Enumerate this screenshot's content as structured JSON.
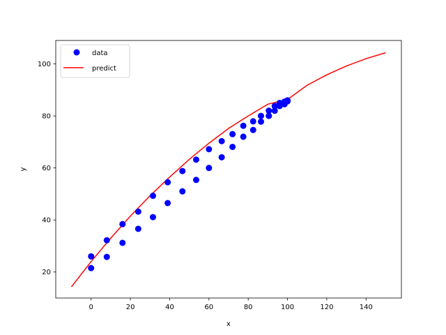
{
  "chart_data": {
    "type": "scatter",
    "xlabel": "x",
    "ylabel": "y",
    "xlim": [
      -18,
      158
    ],
    "ylim": [
      10,
      109
    ],
    "xticks": [
      0,
      20,
      40,
      60,
      80,
      100,
      120,
      140
    ],
    "yticks": [
      20,
      40,
      60,
      80,
      100
    ],
    "grid": false,
    "legend_position": "top-left",
    "series": [
      {
        "name": "data",
        "kind": "markers",
        "color": "#0000ff",
        "points": [
          [
            0,
            21.5
          ],
          [
            0,
            26.0
          ],
          [
            8,
            25.8
          ],
          [
            8,
            32.2
          ],
          [
            16,
            31.2
          ],
          [
            16,
            38.4
          ],
          [
            24,
            36.6
          ],
          [
            24,
            43.2
          ],
          [
            31.5,
            41.1
          ],
          [
            31.5,
            49.3
          ],
          [
            39,
            46.5
          ],
          [
            39,
            54.5
          ],
          [
            46.5,
            51.0
          ],
          [
            46.5,
            58.8
          ],
          [
            53.5,
            55.4
          ],
          [
            53.5,
            63.2
          ],
          [
            60,
            60.0
          ],
          [
            60,
            67.2
          ],
          [
            66.5,
            64.1
          ],
          [
            66.5,
            70.3
          ],
          [
            72,
            68.1
          ],
          [
            72,
            73.0
          ],
          [
            77.5,
            72.0
          ],
          [
            77.5,
            76.2
          ],
          [
            82.5,
            74.6
          ],
          [
            82.5,
            77.9
          ],
          [
            86.5,
            77.8
          ],
          [
            86.5,
            80.0
          ],
          [
            90.5,
            80.0
          ],
          [
            90.5,
            82.0
          ],
          [
            93.5,
            82.0
          ],
          [
            93.5,
            83.8
          ],
          [
            96,
            83.8
          ],
          [
            96,
            85.0
          ],
          [
            98.5,
            84.5
          ],
          [
            98.5,
            85.5
          ],
          [
            100,
            85.6
          ],
          [
            100,
            86.0
          ]
        ]
      },
      {
        "name": "predict",
        "kind": "line",
        "color": "#ff0000",
        "points": [
          [
            -10,
            14.3
          ],
          [
            0,
            24.0
          ],
          [
            10,
            33.0
          ],
          [
            20,
            41.5
          ],
          [
            30,
            49.3
          ],
          [
            40,
            56.5
          ],
          [
            50,
            63.3
          ],
          [
            60,
            69.5
          ],
          [
            70,
            75.2
          ],
          [
            80,
            80.0
          ],
          [
            90,
            84.5
          ],
          [
            100,
            86.3
          ],
          [
            110,
            91.8
          ],
          [
            120,
            95.8
          ],
          [
            130,
            99.2
          ],
          [
            140,
            102.0
          ],
          [
            150,
            104.3
          ]
        ]
      }
    ]
  }
}
